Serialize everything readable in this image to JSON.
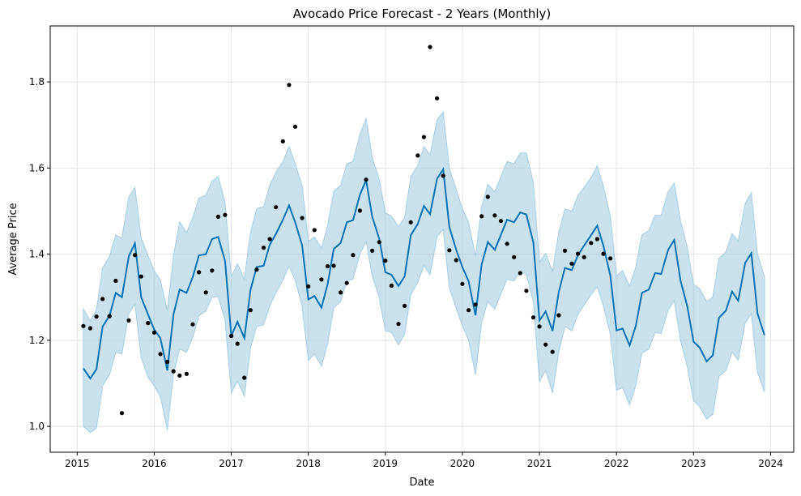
{
  "chart_data": {
    "type": "line",
    "title": "Avocado Price Forecast - 2 Years (Monthly)",
    "xlabel": "Date",
    "ylabel": "Average Price",
    "xlim": [
      2014.65,
      2024.3
    ],
    "ylim": [
      0.94,
      1.93
    ],
    "x_ticks": [
      2015,
      2016,
      2017,
      2018,
      2019,
      2020,
      2021,
      2022,
      2023,
      2024
    ],
    "x_tick_labels": [
      "2015",
      "2016",
      "2017",
      "2018",
      "2019",
      "2020",
      "2021",
      "2022",
      "2023",
      "2024"
    ],
    "y_ticks": [
      1.0,
      1.2,
      1.4,
      1.6,
      1.8
    ],
    "y_tick_labels": [
      "1.0",
      "1.2",
      "1.4",
      "1.6",
      "1.8"
    ],
    "grid": true,
    "colors": {
      "forecast": "#0072B2",
      "band": "#a6cee3",
      "observed": "#000000"
    },
    "series": [
      {
        "kind": "forecast",
        "x": [
          2015.08,
          2015.17,
          2015.25,
          2015.33,
          2015.42,
          2015.5,
          2015.58,
          2015.67,
          2015.75,
          2015.83,
          2015.92,
          2016.0,
          2016.08,
          2016.17,
          2016.25,
          2016.33,
          2016.42,
          2016.5,
          2016.58,
          2016.67,
          2016.75,
          2016.83,
          2016.92,
          2017.0,
          2017.08,
          2017.17,
          2017.25,
          2017.33,
          2017.42,
          2017.5,
          2017.58,
          2017.67,
          2017.75,
          2017.83,
          2017.92,
          2018.0,
          2018.08,
          2018.17,
          2018.25,
          2018.33,
          2018.42,
          2018.5,
          2018.58,
          2018.67,
          2018.75,
          2018.83,
          2018.92,
          2019.0,
          2019.08,
          2019.17,
          2019.25,
          2019.33,
          2019.42,
          2019.5,
          2019.58,
          2019.67,
          2019.75,
          2019.83,
          2019.92,
          2020.0,
          2020.08,
          2020.17,
          2020.25,
          2020.33,
          2020.42,
          2020.5,
          2020.58,
          2020.67,
          2020.75,
          2020.83,
          2020.92,
          2021.0,
          2021.08,
          2021.17,
          2021.25,
          2021.33,
          2021.42,
          2021.5,
          2021.58,
          2021.67,
          2021.75,
          2021.83,
          2021.92,
          2022.0,
          2022.08,
          2022.17,
          2022.25,
          2022.33,
          2022.42,
          2022.5,
          2022.58,
          2022.67,
          2022.75,
          2022.83,
          2022.92,
          2023.0,
          2023.08,
          2023.17,
          2023.25,
          2023.33,
          2023.42,
          2023.5,
          2023.58,
          2023.67,
          2023.75,
          2023.83,
          2023.92
        ],
        "yhat": [
          1.135,
          1.111,
          1.133,
          1.232,
          1.257,
          1.31,
          1.3,
          1.395,
          1.425,
          1.3,
          1.26,
          1.225,
          1.205,
          1.13,
          1.26,
          1.318,
          1.31,
          1.347,
          1.397,
          1.4,
          1.435,
          1.44,
          1.384,
          1.21,
          1.243,
          1.205,
          1.317,
          1.37,
          1.373,
          1.422,
          1.447,
          1.48,
          1.513,
          1.474,
          1.42,
          1.295,
          1.303,
          1.276,
          1.33,
          1.412,
          1.426,
          1.474,
          1.479,
          1.538,
          1.572,
          1.487,
          1.436,
          1.358,
          1.352,
          1.326,
          1.348,
          1.444,
          1.47,
          1.512,
          1.493,
          1.575,
          1.597,
          1.463,
          1.41,
          1.37,
          1.337,
          1.258,
          1.376,
          1.428,
          1.41,
          1.445,
          1.48,
          1.474,
          1.497,
          1.492,
          1.427,
          1.246,
          1.267,
          1.222,
          1.312,
          1.368,
          1.363,
          1.398,
          1.42,
          1.444,
          1.466,
          1.42,
          1.35,
          1.223,
          1.227,
          1.188,
          1.233,
          1.31,
          1.318,
          1.356,
          1.354,
          1.41,
          1.433,
          1.339,
          1.278,
          1.197,
          1.183,
          1.151,
          1.165,
          1.252,
          1.269,
          1.313,
          1.292,
          1.38,
          1.402,
          1.262,
          1.212
        ],
        "lower": [
          1.0,
          0.986,
          0.996,
          1.095,
          1.12,
          1.172,
          1.168,
          1.262,
          1.284,
          1.16,
          1.114,
          1.094,
          1.07,
          0.992,
          1.122,
          1.18,
          1.172,
          1.207,
          1.257,
          1.268,
          1.3,
          1.302,
          1.246,
          1.078,
          1.105,
          1.07,
          1.183,
          1.232,
          1.236,
          1.28,
          1.31,
          1.34,
          1.372,
          1.34,
          1.278,
          1.153,
          1.168,
          1.14,
          1.192,
          1.276,
          1.29,
          1.338,
          1.342,
          1.4,
          1.43,
          1.35,
          1.3,
          1.222,
          1.218,
          1.19,
          1.214,
          1.306,
          1.334,
          1.374,
          1.352,
          1.44,
          1.458,
          1.322,
          1.274,
          1.234,
          1.2,
          1.12,
          1.242,
          1.29,
          1.272,
          1.308,
          1.342,
          1.338,
          1.36,
          1.352,
          1.29,
          1.104,
          1.13,
          1.078,
          1.172,
          1.232,
          1.222,
          1.26,
          1.282,
          1.306,
          1.324,
          1.28,
          1.214,
          1.084,
          1.09,
          1.05,
          1.095,
          1.17,
          1.18,
          1.218,
          1.216,
          1.27,
          1.292,
          1.2,
          1.138,
          1.06,
          1.046,
          1.017,
          1.028,
          1.116,
          1.13,
          1.172,
          1.154,
          1.24,
          1.262,
          1.126,
          1.08
        ],
        "upper": [
          1.273,
          1.245,
          1.271,
          1.368,
          1.395,
          1.445,
          1.437,
          1.533,
          1.555,
          1.438,
          1.396,
          1.362,
          1.34,
          1.268,
          1.396,
          1.475,
          1.45,
          1.485,
          1.53,
          1.537,
          1.57,
          1.58,
          1.52,
          1.348,
          1.378,
          1.342,
          1.45,
          1.506,
          1.51,
          1.56,
          1.59,
          1.615,
          1.65,
          1.61,
          1.558,
          1.43,
          1.44,
          1.414,
          1.466,
          1.546,
          1.56,
          1.61,
          1.615,
          1.678,
          1.715,
          1.625,
          1.574,
          1.496,
          1.488,
          1.464,
          1.485,
          1.58,
          1.606,
          1.65,
          1.63,
          1.712,
          1.73,
          1.6,
          1.55,
          1.506,
          1.474,
          1.395,
          1.51,
          1.562,
          1.545,
          1.58,
          1.615,
          1.61,
          1.635,
          1.635,
          1.566,
          1.382,
          1.402,
          1.36,
          1.45,
          1.505,
          1.5,
          1.536,
          1.555,
          1.578,
          1.605,
          1.558,
          1.488,
          1.35,
          1.362,
          1.326,
          1.37,
          1.445,
          1.455,
          1.49,
          1.49,
          1.545,
          1.565,
          1.478,
          1.415,
          1.33,
          1.32,
          1.29,
          1.3,
          1.39,
          1.405,
          1.448,
          1.43,
          1.518,
          1.543,
          1.4,
          1.348
        ]
      },
      {
        "kind": "observed",
        "x": [
          2015.08,
          2015.17,
          2015.25,
          2015.33,
          2015.42,
          2015.5,
          2015.58,
          2015.67,
          2015.75,
          2015.83,
          2015.92,
          2016.0,
          2016.08,
          2016.17,
          2016.25,
          2016.33,
          2016.42,
          2016.5,
          2016.58,
          2016.67,
          2016.75,
          2016.83,
          2016.92,
          2017.0,
          2017.08,
          2017.17,
          2017.25,
          2017.33,
          2017.42,
          2017.5,
          2017.58,
          2017.67,
          2017.75,
          2017.83,
          2017.92,
          2018.0,
          2018.08,
          2018.17,
          2018.25,
          2018.33,
          2018.42,
          2018.5,
          2018.58,
          2018.67,
          2018.75,
          2018.83,
          2018.92,
          2019.0,
          2019.08,
          2019.17,
          2019.25,
          2019.33,
          2019.42,
          2019.5,
          2019.58,
          2019.67,
          2019.75,
          2019.83,
          2019.92,
          2020.0,
          2020.08,
          2020.17,
          2020.25,
          2020.33,
          2020.42,
          2020.5,
          2020.58,
          2020.67,
          2020.75,
          2020.83,
          2020.92,
          2021.0,
          2021.08,
          2021.17,
          2021.25,
          2021.33,
          2021.42,
          2021.5,
          2021.58,
          2021.67,
          2021.75,
          2021.83,
          2021.92
        ],
        "y": [
          1.233,
          1.228,
          1.255,
          1.296,
          1.256,
          1.338,
          1.031,
          1.246,
          1.398,
          1.348,
          1.24,
          1.218,
          1.168,
          1.15,
          1.128,
          1.118,
          1.122,
          1.237,
          1.358,
          1.311,
          1.362,
          1.487,
          1.491,
          1.21,
          1.192,
          1.113,
          1.27,
          1.364,
          1.415,
          1.435,
          1.509,
          1.662,
          1.793,
          1.696,
          1.484,
          1.325,
          1.456,
          1.341,
          1.372,
          1.373,
          1.311,
          1.333,
          1.398,
          1.501,
          1.573,
          1.408,
          1.428,
          1.385,
          1.327,
          1.238,
          1.28,
          1.474,
          1.629,
          1.672,
          1.881,
          1.762,
          1.582,
          1.409,
          1.386,
          1.331,
          1.27,
          1.283,
          1.488,
          1.533,
          1.49,
          1.477,
          1.424,
          1.393,
          1.356,
          1.315,
          1.253,
          1.232,
          1.19,
          1.173,
          1.258,
          1.408,
          1.378,
          1.401,
          1.393,
          1.426,
          1.435,
          1.401,
          1.39
        ]
      }
    ]
  }
}
